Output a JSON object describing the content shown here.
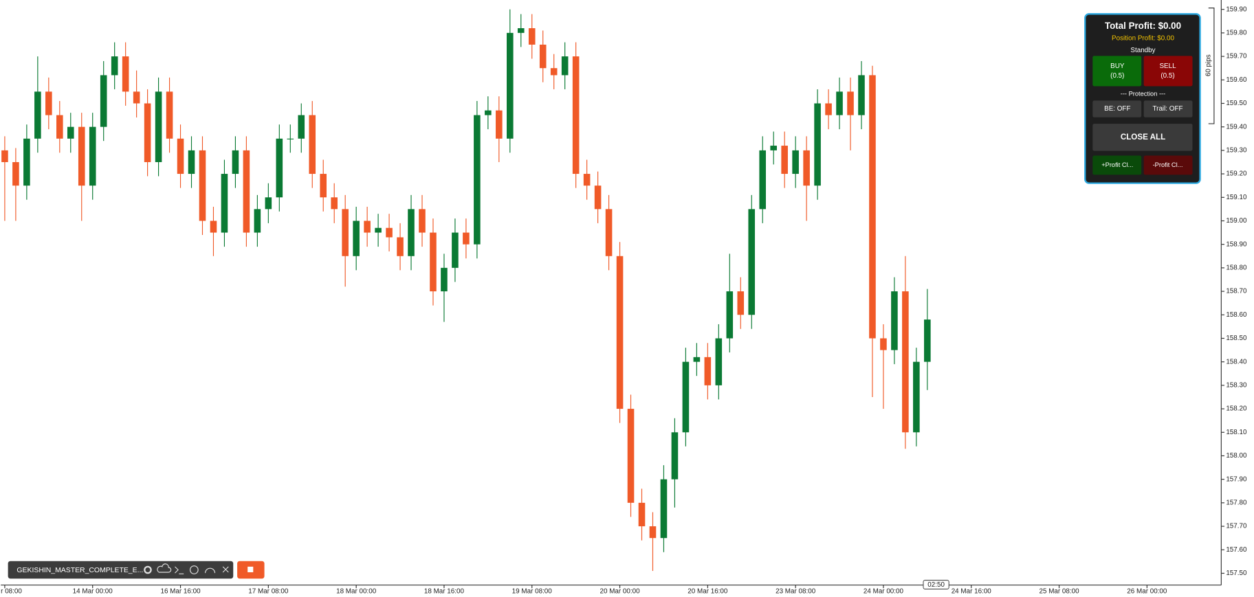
{
  "chart_data": {
    "type": "candlestick",
    "open": [
      159.3,
      159.25,
      159.15,
      159.35,
      159.55,
      159.45,
      159.35,
      159.4,
      159.15,
      159.4,
      159.62,
      159.7,
      159.55,
      159.5,
      159.25,
      159.55,
      159.35,
      159.2,
      159.3,
      159.0,
      158.95,
      159.2,
      159.3,
      158.95,
      159.05,
      159.1,
      159.35,
      159.35,
      159.45,
      159.2,
      159.1,
      159.05,
      158.85,
      159.0,
      158.95,
      158.97,
      158.93,
      158.85,
      159.05,
      158.95,
      158.7,
      158.8,
      158.95,
      158.9,
      159.45,
      159.47,
      159.35,
      159.8,
      159.82,
      159.75,
      159.65,
      159.62,
      159.7,
      159.2,
      159.15,
      159.05,
      158.85,
      158.2,
      157.8,
      157.7,
      157.65,
      157.9,
      158.1,
      158.4,
      158.42,
      158.3,
      158.5,
      158.7,
      158.6,
      159.05,
      159.3,
      159.32,
      159.2,
      159.3,
      159.15,
      159.5,
      159.45,
      159.55,
      159.45,
      159.62,
      158.5,
      158.45,
      158.7,
      158.1,
      158.4
    ],
    "high": [
      159.36,
      159.31,
      159.41,
      159.7,
      159.61,
      159.51,
      159.46,
      159.46,
      159.46,
      159.68,
      159.76,
      159.76,
      159.64,
      159.56,
      159.61,
      159.61,
      159.41,
      159.36,
      159.36,
      159.06,
      159.26,
      159.36,
      159.36,
      159.11,
      159.16,
      159.41,
      159.41,
      159.5,
      159.51,
      159.26,
      159.16,
      159.11,
      159.06,
      159.06,
      159.03,
      159.03,
      158.99,
      159.11,
      159.11,
      159.01,
      158.86,
      159.01,
      159.01,
      159.51,
      159.53,
      159.53,
      159.9,
      159.88,
      159.88,
      159.81,
      159.71,
      159.76,
      159.76,
      159.26,
      159.21,
      159.11,
      158.91,
      158.26,
      157.86,
      157.76,
      157.96,
      158.16,
      158.46,
      158.48,
      158.48,
      158.56,
      158.86,
      158.76,
      159.11,
      159.36,
      159.38,
      159.38,
      159.36,
      159.36,
      159.56,
      159.56,
      159.61,
      159.61,
      159.68,
      159.66,
      158.56,
      158.76,
      158.85,
      158.46,
      158.71
    ],
    "low": [
      159.0,
      159.0,
      159.09,
      159.29,
      159.39,
      159.29,
      159.29,
      159.0,
      159.09,
      159.34,
      159.56,
      159.49,
      159.44,
      159.19,
      159.19,
      159.29,
      159.14,
      159.14,
      158.94,
      158.85,
      158.89,
      159.14,
      158.89,
      158.89,
      158.99,
      159.04,
      159.29,
      159.29,
      159.14,
      159.04,
      158.99,
      158.72,
      158.79,
      158.89,
      158.89,
      158.87,
      158.79,
      158.79,
      158.89,
      158.64,
      158.57,
      158.74,
      158.84,
      158.84,
      159.39,
      159.25,
      159.29,
      159.74,
      159.69,
      159.59,
      159.56,
      159.56,
      159.14,
      159.09,
      158.99,
      158.79,
      158.14,
      157.74,
      157.64,
      157.51,
      157.59,
      157.78,
      158.04,
      158.34,
      158.24,
      158.24,
      158.44,
      158.54,
      158.54,
      158.99,
      159.24,
      159.14,
      159.14,
      159.0,
      159.09,
      159.39,
      159.39,
      159.3,
      159.39,
      158.25,
      158.2,
      158.39,
      158.03,
      158.04,
      158.28
    ],
    "close": [
      159.25,
      159.15,
      159.35,
      159.55,
      159.45,
      159.35,
      159.4,
      159.15,
      159.4,
      159.62,
      159.7,
      159.55,
      159.5,
      159.25,
      159.55,
      159.35,
      159.2,
      159.3,
      159.0,
      158.95,
      159.2,
      159.3,
      158.95,
      159.05,
      159.1,
      159.35,
      159.35,
      159.45,
      159.2,
      159.1,
      159.05,
      158.85,
      159.0,
      158.95,
      158.97,
      158.93,
      158.85,
      159.05,
      158.95,
      158.7,
      158.8,
      158.95,
      158.9,
      159.45,
      159.47,
      159.35,
      159.8,
      159.82,
      159.75,
      159.65,
      159.62,
      159.7,
      159.2,
      159.15,
      159.05,
      158.85,
      158.2,
      157.8,
      157.7,
      157.65,
      157.9,
      158.1,
      158.4,
      158.42,
      158.3,
      158.5,
      158.7,
      158.6,
      159.05,
      159.3,
      159.32,
      159.2,
      159.3,
      159.15,
      159.5,
      159.45,
      159.55,
      159.45,
      159.62,
      158.5,
      158.45,
      158.7,
      158.1,
      158.4,
      158.58
    ],
    "up_color": "#0b7a34",
    "down_color": "#f05a28",
    "xlim": [
      -0.36,
      110.76
    ],
    "xticks": [
      {
        "value": 0,
        "label": "r 08:00"
      },
      {
        "value": 8,
        "label": "14 Mar 00:00"
      },
      {
        "value": 16,
        "label": "16 Mar 16:00"
      },
      {
        "value": 24,
        "label": "17 Mar 08:00"
      },
      {
        "value": 32,
        "label": "18 Mar 00:00"
      },
      {
        "value": 40,
        "label": "18 Mar 16:00"
      },
      {
        "value": 48,
        "label": "19 Mar 08:00"
      },
      {
        "value": 56,
        "label": "20 Mar 00:00"
      },
      {
        "value": 64,
        "label": "20 Mar 16:00"
      },
      {
        "value": 72,
        "label": "23 Mar 08:00"
      },
      {
        "value": 80,
        "label": "24 Mar 00:00"
      },
      {
        "value": 88,
        "label": "24 Mar 16:00"
      },
      {
        "value": 96,
        "label": "25 Mar 08:00"
      },
      {
        "value": 104,
        "label": "26 Mar 00:00"
      }
    ],
    "ylim": [
      157.45,
      159.94
    ],
    "yticks": [
      {
        "value": 157.5,
        "label": "157.50"
      },
      {
        "value": 157.6,
        "label": "157.60"
      },
      {
        "value": 157.7,
        "label": "157.70"
      },
      {
        "value": 157.8,
        "label": "157.80"
      },
      {
        "value": 157.9,
        "label": "157.90"
      },
      {
        "value": 158.0,
        "label": "158.00"
      },
      {
        "value": 158.1,
        "label": "158.10"
      },
      {
        "value": 158.2,
        "label": "158.20"
      },
      {
        "value": 158.3,
        "label": "158.30"
      },
      {
        "value": 158.4,
        "label": "158.40"
      },
      {
        "value": 158.5,
        "label": "158.50"
      },
      {
        "value": 158.6,
        "label": "158.60"
      },
      {
        "value": 158.7,
        "label": "158.70"
      },
      {
        "value": 158.8,
        "label": "158.80"
      },
      {
        "value": 158.9,
        "label": "158.90"
      },
      {
        "value": 159.0,
        "label": "159.00"
      },
      {
        "value": 159.1,
        "label": "159.10"
      },
      {
        "value": 159.2,
        "label": "159.20"
      },
      {
        "value": 159.3,
        "label": "159.30"
      },
      {
        "value": 159.4,
        "label": "159.40"
      },
      {
        "value": 159.5,
        "label": "159.50"
      },
      {
        "value": 159.6,
        "label": "159.60"
      },
      {
        "value": 159.7,
        "label": "159.70"
      },
      {
        "value": 159.8,
        "label": "159.80"
      },
      {
        "value": 159.9,
        "label": "159.90"
      }
    ],
    "time_label": "02:50",
    "pips_label": "60 pips"
  },
  "panel": {
    "total_profit": "Total Profit: $0.00",
    "position_profit": "Position Profit: $0.00",
    "status": "Standby",
    "buy": "BUY",
    "buy_lot": "(0.5)",
    "sell": "SELL",
    "sell_lot": "(0.5)",
    "protection": "--- Protection ---",
    "be": "BE: OFF",
    "trail": "Trail: OFF",
    "close_all": "CLOSE ALL",
    "plus_close": "+Profit Cl...",
    "minus_close": "-Profit Cl..."
  },
  "toolbar": {
    "ea_name": "GEKISHIN_MASTER_COMPLETE_E..."
  }
}
